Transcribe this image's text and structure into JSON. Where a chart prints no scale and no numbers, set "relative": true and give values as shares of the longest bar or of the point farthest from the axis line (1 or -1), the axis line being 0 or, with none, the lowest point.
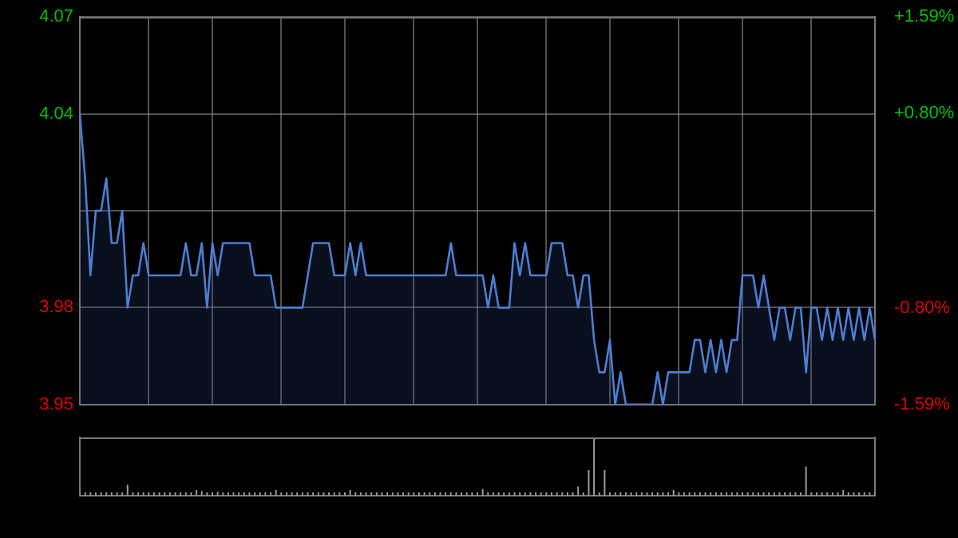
{
  "chart_data": [
    {
      "type": "area",
      "categories": [
        null,
        null,
        null,
        null,
        null,
        null,
        null,
        null,
        null,
        null,
        null,
        null,
        null,
        null,
        null,
        null,
        null,
        null,
        null,
        null,
        null,
        null,
        null,
        null,
        null,
        null,
        null,
        null,
        null,
        null,
        null,
        null,
        null,
        null,
        null,
        null,
        null,
        null,
        null,
        null,
        null,
        null,
        null,
        null,
        null,
        null,
        null,
        null,
        null,
        null,
        null,
        null,
        null,
        null,
        null,
        null,
        null,
        null,
        null,
        null,
        null,
        null,
        null,
        null,
        null,
        null,
        null,
        null,
        null,
        null,
        null,
        null,
        null,
        null,
        null,
        null,
        null,
        null,
        null,
        null,
        null,
        null,
        null,
        null,
        null,
        null,
        null,
        null,
        null,
        null,
        null,
        null,
        null,
        null,
        null,
        null,
        null,
        null,
        null,
        null,
        null,
        null,
        null,
        null,
        null,
        null,
        null,
        null,
        null,
        null,
        null,
        null,
        null,
        null,
        null,
        null,
        null,
        null,
        null,
        null,
        null,
        null,
        null,
        null,
        null,
        null,
        null,
        null,
        null,
        null,
        null,
        null,
        null,
        null,
        null,
        null,
        null,
        null,
        null,
        null,
        null,
        null,
        null,
        null,
        null,
        null,
        null,
        null,
        null,
        null,
        null
      ],
      "series": [
        {
          "color": "#4a7fd4",
          "values": [
            4.04,
            4.02,
            3.99,
            4.01,
            4.01,
            4.02,
            4.0,
            4.0,
            4.01,
            3.98,
            3.99,
            3.99,
            4.0,
            3.99,
            3.99,
            3.99,
            3.99,
            3.99,
            3.99,
            3.99,
            4.0,
            3.99,
            3.99,
            4.0,
            3.98,
            4.0,
            3.99,
            4.0,
            4.0,
            4.0,
            4.0,
            4.0,
            4.0,
            3.99,
            3.99,
            3.99,
            3.99,
            3.98,
            3.98,
            3.98,
            3.98,
            3.98,
            3.98,
            3.99,
            4.0,
            4.0,
            4.0,
            4.0,
            3.99,
            3.99,
            3.99,
            4.0,
            3.99,
            4.0,
            3.99,
            3.99,
            3.99,
            3.99,
            3.99,
            3.99,
            3.99,
            3.99,
            3.99,
            3.99,
            3.99,
            3.99,
            3.99,
            3.99,
            3.99,
            3.99,
            4.0,
            3.99,
            3.99,
            3.99,
            3.99,
            3.99,
            3.99,
            3.98,
            3.99,
            3.98,
            3.98,
            3.98,
            4.0,
            3.99,
            4.0,
            3.99,
            3.99,
            3.99,
            3.99,
            4.0,
            4.0,
            4.0,
            3.99,
            3.99,
            3.98,
            3.99,
            3.99,
            3.97,
            3.96,
            3.96,
            3.97,
            3.95,
            3.96,
            3.95,
            3.95,
            3.95,
            3.95,
            3.95,
            3.95,
            3.96,
            3.95,
            3.96,
            3.96,
            3.96,
            3.96,
            3.96,
            3.97,
            3.97,
            3.96,
            3.97,
            3.96,
            3.97,
            3.96,
            3.97,
            3.97,
            3.99,
            3.99,
            3.99,
            3.98,
            3.99,
            3.98,
            3.97,
            3.98,
            3.98,
            3.97,
            3.98,
            3.98,
            3.96,
            3.98,
            3.98,
            3.97,
            3.98,
            3.97,
            3.98,
            3.97,
            3.98,
            3.97,
            3.98,
            3.97,
            3.98,
            3.97
          ]
        }
      ],
      "ylim": [
        3.95,
        4.07
      ],
      "yticks": [
        3.95,
        3.98,
        {
          "value": 4.01,
          "label": null
        },
        4.04,
        4.07
      ],
      "y2lim": [
        -1.59,
        1.59
      ],
      "y2ticks": [
        {
          "value": -1.59,
          "label": "-1.59%"
        },
        {
          "value": -0.8,
          "label": "-0.80%"
        },
        {
          "value": 0,
          "label": null
        },
        {
          "value": 0.8,
          "label": "+0.80%"
        },
        {
          "value": 1.59,
          "label": "+1.59%"
        }
      ],
      "grid": true,
      "legend": false,
      "tick_labels": "y"
    },
    {
      "type": "bar",
      "relative": true,
      "categories": [
        null,
        null,
        null,
        null,
        null,
        null,
        null,
        null,
        null,
        null,
        null,
        null,
        null,
        null,
        null,
        null,
        null,
        null,
        null,
        null,
        null,
        null,
        null,
        null,
        null,
        null,
        null,
        null,
        null,
        null,
        null,
        null,
        null,
        null,
        null,
        null,
        null,
        null,
        null,
        null,
        null,
        null,
        null,
        null,
        null,
        null,
        null,
        null,
        null,
        null,
        null,
        null,
        null,
        null,
        null,
        null,
        null,
        null,
        null,
        null,
        null,
        null,
        null,
        null,
        null,
        null,
        null,
        null,
        null,
        null,
        null,
        null,
        null,
        null,
        null,
        null,
        null,
        null,
        null,
        null,
        null,
        null,
        null,
        null,
        null,
        null,
        null,
        null,
        null,
        null,
        null,
        null,
        null,
        null,
        null,
        null,
        null,
        null,
        null,
        null,
        null,
        null,
        null,
        null,
        null,
        null,
        null,
        null,
        null,
        null,
        null,
        null,
        null,
        null,
        null,
        null,
        null,
        null,
        null,
        null,
        null,
        null,
        null,
        null,
        null,
        null,
        null,
        null,
        null,
        null,
        null,
        null,
        null,
        null,
        null,
        null,
        null,
        null,
        null,
        null,
        null,
        null,
        null,
        null,
        null,
        null,
        null,
        null,
        null,
        null,
        null
      ],
      "color": "#9a9a9a",
      "values": [
        0.06,
        0.06,
        0.06,
        0.06,
        0.06,
        0.06,
        0.06,
        0.06,
        0.06,
        0.19,
        0.06,
        0.06,
        0.06,
        0.06,
        0.06,
        0.06,
        0.06,
        0.06,
        0.06,
        0.06,
        0.06,
        0.06,
        0.1,
        0.08,
        0.06,
        0.06,
        0.07,
        0.06,
        0.06,
        0.06,
        0.06,
        0.06,
        0.06,
        0.06,
        0.06,
        0.06,
        0.06,
        0.1,
        0.06,
        0.06,
        0.06,
        0.06,
        0.06,
        0.06,
        0.06,
        0.06,
        0.06,
        0.06,
        0.06,
        0.06,
        0.06,
        0.1,
        0.06,
        0.06,
        0.06,
        0.06,
        0.06,
        0.06,
        0.06,
        0.06,
        0.06,
        0.06,
        0.06,
        0.06,
        0.06,
        0.06,
        0.06,
        0.06,
        0.06,
        0.06,
        0.06,
        0.06,
        0.06,
        0.06,
        0.06,
        0.06,
        0.12,
        0.06,
        0.06,
        0.06,
        0.06,
        0.06,
        0.06,
        0.06,
        0.06,
        0.06,
        0.06,
        0.06,
        0.06,
        0.06,
        0.06,
        0.06,
        0.06,
        0.06,
        0.16,
        0.06,
        0.44,
        1,
        0.06,
        0.44,
        0.06,
        0.06,
        0.06,
        0.06,
        0.06,
        0.06,
        0.06,
        0.06,
        0.06,
        0.06,
        0.06,
        0.06,
        0.1,
        0.06,
        0.06,
        0.06,
        0.06,
        0.06,
        0.06,
        0.06,
        0.06,
        0.06,
        0.06,
        0.06,
        0.06,
        0.06,
        0.06,
        0.06,
        0.06,
        0.06,
        0.06,
        0.06,
        0.06,
        0.06,
        0.06,
        0.06,
        0.06,
        0.5,
        0.06,
        0.06,
        0.06,
        0.06,
        0.06,
        0.06,
        0.1,
        0.06,
        0.06,
        0.06,
        0.06,
        0.06,
        0.06
      ],
      "legend": false
    }
  ]
}
